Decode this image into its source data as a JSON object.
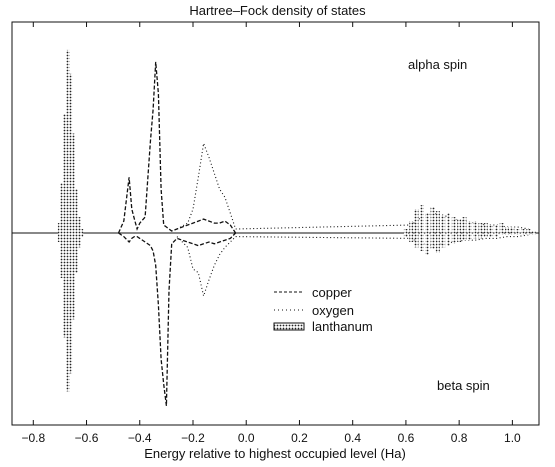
{
  "chart_data": {
    "type": "line",
    "title": "Hartree–Fock density of states",
    "xlabel": "Energy relative to highest occupied level (Ha)",
    "ylabel": "",
    "xlim": [
      -0.88,
      1.1
    ],
    "ylim": [
      -1.0,
      1.0
    ],
    "x_ticks": [
      -0.8,
      -0.6,
      -0.4,
      -0.2,
      0.0,
      0.2,
      0.4,
      0.6,
      0.8,
      1.0
    ],
    "x_tick_labels": [
      "−0.8",
      "−0.6",
      "−0.4",
      "−0.2",
      "0.0",
      "0.2",
      "0.4",
      "0.6",
      "0.8",
      "1.0"
    ],
    "annotations": {
      "upper": "alpha spin",
      "lower": "beta spin"
    },
    "legend": {
      "placement": "center",
      "entries": [
        "copper",
        "oxygen",
        "lanthanum"
      ]
    },
    "grid": false,
    "series": [
      {
        "name": "copper",
        "style": "dashed",
        "x": [
          -0.48,
          -0.46,
          -0.44,
          -0.43,
          -0.42,
          -0.41,
          -0.4,
          -0.38,
          -0.36,
          -0.35,
          -0.34,
          -0.33,
          -0.32,
          -0.31,
          -0.3,
          -0.29,
          -0.28,
          -0.26,
          -0.24,
          -0.22,
          -0.2,
          -0.18,
          -0.16,
          -0.14,
          -0.12,
          -0.1,
          -0.08,
          -0.06,
          -0.04
        ],
        "alpha": [
          0.0,
          0.06,
          0.28,
          0.12,
          0.07,
          0.02,
          0.05,
          0.08,
          0.46,
          0.62,
          0.86,
          0.7,
          0.22,
          0.04,
          0.03,
          0.02,
          0.01,
          0.02,
          0.03,
          0.04,
          0.05,
          0.06,
          0.07,
          0.06,
          0.05,
          0.05,
          0.06,
          0.04,
          0.0
        ],
        "beta": [
          0.0,
          -0.02,
          -0.05,
          -0.03,
          -0.02,
          -0.02,
          -0.03,
          -0.05,
          -0.07,
          -0.1,
          -0.18,
          -0.4,
          -0.7,
          -0.84,
          -0.96,
          -0.32,
          -0.06,
          -0.03,
          -0.04,
          -0.05,
          -0.06,
          -0.07,
          -0.06,
          -0.05,
          -0.06,
          -0.05,
          -0.04,
          -0.03,
          0.0
        ]
      },
      {
        "name": "oxygen",
        "style": "dotted",
        "x": [
          -0.26,
          -0.22,
          -0.2,
          -0.18,
          -0.16,
          -0.14,
          -0.12,
          -0.1,
          -0.08,
          -0.06,
          -0.04,
          0.62,
          0.66,
          0.7,
          0.74,
          0.78,
          0.82,
          0.86,
          0.9,
          0.94,
          0.98,
          1.02,
          1.06
        ],
        "alpha": [
          0.02,
          0.05,
          0.12,
          0.28,
          0.45,
          0.38,
          0.3,
          0.22,
          0.18,
          0.1,
          0.02,
          0.04,
          0.08,
          0.1,
          0.09,
          0.07,
          0.06,
          0.05,
          0.04,
          0.04,
          0.03,
          0.03,
          0.02
        ],
        "beta": [
          -0.02,
          -0.08,
          -0.2,
          -0.22,
          -0.35,
          -0.26,
          -0.18,
          -0.12,
          -0.08,
          -0.05,
          -0.02,
          -0.03,
          -0.06,
          -0.07,
          -0.06,
          -0.05,
          -0.04,
          -0.04,
          -0.03,
          -0.03,
          -0.02,
          -0.02,
          -0.01
        ]
      },
      {
        "name": "lanthanum",
        "style": "filled-hatched",
        "x": [
          -0.7,
          -0.69,
          -0.68,
          -0.67,
          -0.66,
          -0.65,
          -0.64,
          -0.63,
          -0.62,
          0.6,
          0.62,
          0.64,
          0.66,
          0.68,
          0.7,
          0.72,
          0.74,
          0.76,
          0.78,
          0.8,
          0.82,
          0.84,
          0.86,
          0.88,
          0.9,
          0.92,
          0.94,
          0.96,
          0.98,
          1.0,
          1.02,
          1.04,
          1.06,
          1.08
        ],
        "alpha": [
          0.05,
          0.25,
          0.6,
          0.92,
          0.8,
          0.5,
          0.22,
          0.08,
          0.02,
          0.02,
          0.06,
          0.12,
          0.14,
          0.1,
          0.13,
          0.11,
          0.09,
          0.1,
          0.08,
          0.07,
          0.08,
          0.06,
          0.06,
          0.05,
          0.05,
          0.04,
          0.04,
          0.05,
          0.03,
          0.03,
          0.02,
          0.02,
          0.02,
          0.01
        ],
        "beta": [
          -0.05,
          -0.25,
          -0.58,
          -0.88,
          -0.78,
          -0.48,
          -0.22,
          -0.08,
          -0.02,
          -0.02,
          -0.05,
          -0.08,
          -0.1,
          -0.12,
          -0.09,
          -0.11,
          -0.08,
          -0.07,
          -0.06,
          -0.05,
          -0.04,
          -0.04,
          -0.03,
          -0.03,
          -0.02,
          -0.02,
          -0.02,
          -0.01,
          -0.01,
          -0.01,
          -0.01,
          -0.01,
          -0.01,
          -0.01
        ]
      }
    ]
  }
}
